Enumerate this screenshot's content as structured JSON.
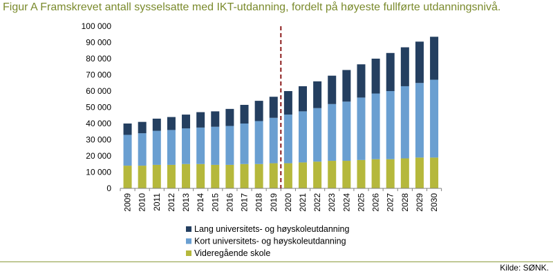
{
  "figure": {
    "title": "Figur A Framskrevet antall sysselsatte med IKT-utdanning, fordelt på høyeste fullførte utdanningsnivå.",
    "source": "Kilde: SØNK."
  },
  "colors": {
    "title": "#7a8a2c",
    "lang": "#243f60",
    "kort": "#6a9fd1",
    "vgs": "#b5b83c",
    "divider": "#8b1a1a"
  },
  "chart_data": {
    "type": "bar",
    "stacked": true,
    "categories": [
      "2009",
      "2010",
      "2011",
      "2012",
      "2013",
      "2014",
      "2015",
      "2016",
      "2017",
      "2018",
      "2019",
      "2020",
      "2021",
      "2022",
      "2023",
      "2024",
      "2025",
      "2026",
      "2027",
      "2028",
      "2029",
      "2030"
    ],
    "series": [
      {
        "name": "Videregående skole",
        "color": "#b5b83c",
        "values": [
          14000,
          14000,
          14500,
          14500,
          15000,
          15000,
          14500,
          14500,
          15000,
          15000,
          15500,
          15500,
          16000,
          16500,
          17000,
          17000,
          17500,
          18000,
          18000,
          18500,
          19000,
          19000
        ]
      },
      {
        "name": "Kort universitets- og høyskoleutdanning",
        "color": "#6a9fd1",
        "values": [
          19000,
          20000,
          21000,
          21500,
          22000,
          22500,
          23500,
          24000,
          25000,
          26500,
          28000,
          30000,
          31500,
          33000,
          35000,
          36500,
          38500,
          40500,
          42000,
          44500,
          46000,
          48000
        ]
      },
      {
        "name": "Lang universitets- og høyskoleutdanning",
        "color": "#243f60",
        "values": [
          7000,
          7000,
          7500,
          8000,
          8500,
          9500,
          9500,
          10500,
          11500,
          12500,
          13000,
          14500,
          15500,
          16500,
          17500,
          19500,
          20500,
          21500,
          23500,
          24000,
          25500,
          26500
        ]
      }
    ],
    "legend_order": [
      "Lang universitets- og høyskoleutdanning",
      "Kort universitets- og høyskoleutdanning",
      "Videregående skole"
    ],
    "yticks": [
      "0",
      "10 000",
      "20 000",
      "30 000",
      "40 000",
      "50 000",
      "60 000",
      "70 000",
      "80 000",
      "90 000",
      "100 000"
    ],
    "ylim": [
      0,
      100000
    ],
    "ystep": 10000,
    "divider_between": [
      "2019",
      "2020"
    ],
    "grid": false,
    "legend_position": "bottom"
  }
}
